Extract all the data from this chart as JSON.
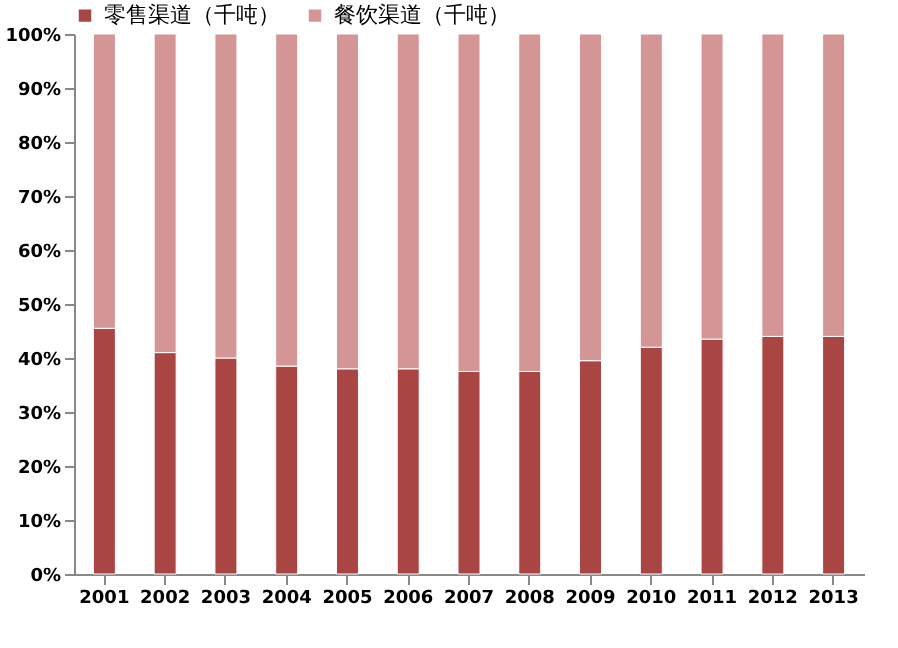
{
  "chart_data": {
    "type": "bar",
    "stacked": true,
    "legend": "top",
    "categories": [
      "2001",
      "2002",
      "2003",
      "2004",
      "2005",
      "2006",
      "2007",
      "2008",
      "2009",
      "2010",
      "2011",
      "2012",
      "2013"
    ],
    "series": [
      {
        "name": "零售渠道（千吨）",
        "color": "#a94543",
        "values": [
          45.5,
          41,
          40,
          38.5,
          38,
          38,
          37.5,
          37.5,
          39.5,
          42,
          43.5,
          44,
          44
        ]
      },
      {
        "name": "餐饮渠道（千吨）",
        "color": "#d49595",
        "values": [
          54.5,
          59,
          60,
          61.5,
          62,
          62,
          62.5,
          62.5,
          60.5,
          58,
          56.5,
          56,
          56
        ]
      }
    ],
    "ylim": [
      0,
      100
    ],
    "yticks": [
      {
        "value": 0,
        "label": "0%"
      },
      {
        "value": 10,
        "label": "10%"
      },
      {
        "value": 20,
        "label": "20%"
      },
      {
        "value": 30,
        "label": "30%"
      },
      {
        "value": 40,
        "label": "40%"
      },
      {
        "value": 50,
        "label": "50%"
      },
      {
        "value": 60,
        "label": "60%"
      },
      {
        "value": 70,
        "label": "70%"
      },
      {
        "value": 80,
        "label": "80%"
      },
      {
        "value": 90,
        "label": "90%"
      },
      {
        "value": 100,
        "label": "100%"
      }
    ],
    "grid": false
  }
}
